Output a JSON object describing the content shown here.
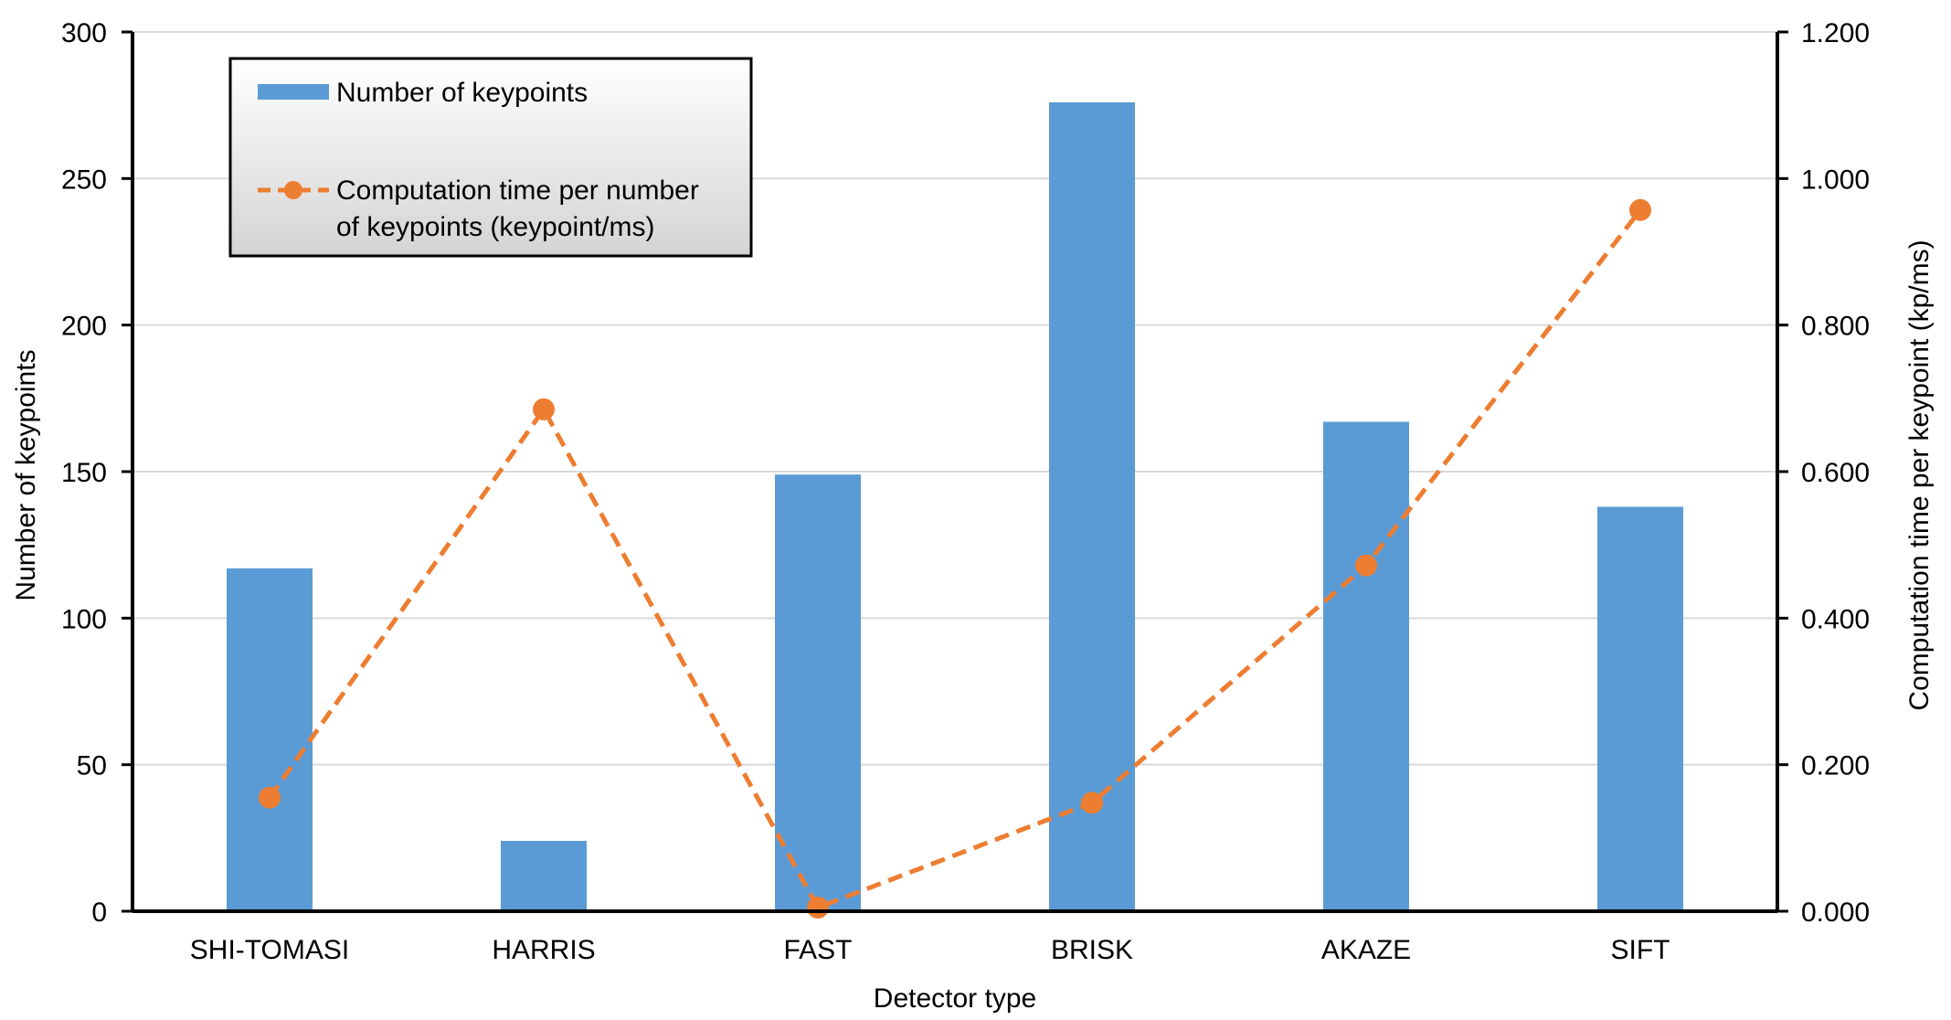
{
  "chart_data": {
    "type": "bar",
    "categories": [
      "SHI-TOMASI",
      "HARRIS",
      "FAST",
      "BRISK",
      "AKAZE",
      "SIFT"
    ],
    "series": [
      {
        "name": "Number of keypoints",
        "type": "bar",
        "axis": "left",
        "values": [
          117,
          24,
          149,
          276,
          167,
          138
        ]
      },
      {
        "name": "Computation time per number of keypoints (keypoint/ms)",
        "name_lines": [
          "Computation time per number",
          "of keypoints (keypoint/ms)"
        ],
        "type": "line",
        "axis": "right",
        "line_style": "dashed",
        "marker": "circle",
        "values": [
          0.155,
          0.685,
          0.005,
          0.148,
          0.472,
          0.957
        ]
      }
    ],
    "xlabel": "Detector type",
    "ylabel": "Number of keypoints",
    "y2label": "Computation time per keypoint (kp/ms)",
    "ylim": [
      0,
      300
    ],
    "y2lim": [
      0,
      1.2
    ],
    "yticks": [
      "0",
      "50",
      "100",
      "150",
      "200",
      "250",
      "300"
    ],
    "y2ticks": [
      "0.000",
      "0.200",
      "0.400",
      "0.600",
      "0.800",
      "1.000",
      "1.200"
    ],
    "grid": true,
    "legend_position": "top-left",
    "colors": {
      "bar": "#5b9bd5",
      "line": "#ed7d31",
      "grid": "#d9d9d9",
      "axis": "#000000"
    }
  }
}
